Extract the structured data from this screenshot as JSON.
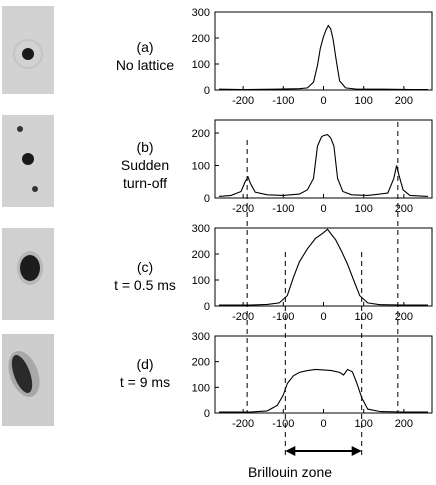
{
  "panels": [
    {
      "label": "(a)",
      "caption": [
        "No lattice"
      ]
    },
    {
      "label": "(b)",
      "caption": [
        "Sudden",
        "turn-off"
      ]
    },
    {
      "label": "(c)",
      "caption": [
        "t = 0.5 ms"
      ]
    },
    {
      "label": "(d)",
      "caption": [
        "t = 9 ms"
      ]
    }
  ],
  "brillouin_label": "Brillouin zone",
  "colors": {
    "trace": "#000000",
    "frame": "#000000",
    "tick_text": "#000000",
    "dashed": "#000000"
  },
  "chart_data": [
    {
      "type": "line",
      "x_ticks": [
        -200,
        -100,
        0,
        100,
        200
      ],
      "y_ticks": [
        0,
        100,
        200,
        300
      ],
      "xlim": [
        -270,
        270
      ],
      "ylim": [
        0,
        300
      ],
      "grid": false,
      "series": [
        {
          "x": [
            -260,
            -200,
            -120,
            -60,
            -40,
            -25,
            -15,
            -8,
            0,
            6,
            12,
            18,
            24,
            32,
            40,
            55,
            80,
            150,
            220,
            260
          ],
          "y": [
            3,
            2,
            3,
            5,
            8,
            30,
            95,
            160,
            205,
            230,
            248,
            235,
            195,
            110,
            35,
            8,
            4,
            3,
            2,
            2
          ]
        }
      ]
    },
    {
      "type": "line",
      "x_ticks": [
        -200,
        -100,
        0,
        100,
        200
      ],
      "y_ticks": [
        0,
        100,
        200
      ],
      "xlim": [
        -270,
        270
      ],
      "ylim": [
        0,
        240
      ],
      "grid": false,
      "series": [
        {
          "x": [
            -260,
            -230,
            -205,
            -195,
            -188,
            -182,
            -170,
            -140,
            -100,
            -60,
            -40,
            -25,
            -15,
            -5,
            0,
            10,
            18,
            26,
            35,
            48,
            70,
            110,
            160,
            175,
            182,
            188,
            198,
            215,
            260
          ],
          "y": [
            5,
            8,
            20,
            50,
            65,
            45,
            18,
            10,
            8,
            12,
            25,
            60,
            160,
            188,
            192,
            195,
            185,
            160,
            60,
            20,
            10,
            8,
            15,
            60,
            100,
            70,
            25,
            8,
            5
          ]
        }
      ]
    },
    {
      "type": "line",
      "x_ticks": [
        -200,
        -100,
        0,
        100,
        200
      ],
      "y_ticks": [
        0,
        100,
        200,
        300
      ],
      "xlim": [
        -270,
        270
      ],
      "ylim": [
        0,
        300
      ],
      "grid": false,
      "series": [
        {
          "x": [
            -260,
            -180,
            -140,
            -110,
            -90,
            -75,
            -60,
            -40,
            -20,
            0,
            10,
            20,
            30,
            45,
            60,
            75,
            90,
            110,
            140,
            200,
            260
          ],
          "y": [
            4,
            4,
            6,
            12,
            40,
            110,
            170,
            220,
            260,
            282,
            295,
            275,
            255,
            210,
            160,
            100,
            40,
            12,
            5,
            4,
            4
          ]
        }
      ]
    },
    {
      "type": "line",
      "x_ticks": [
        -200,
        -100,
        0,
        100,
        200
      ],
      "y_ticks": [
        0,
        100,
        200,
        300
      ],
      "xlim": [
        -270,
        270
      ],
      "ylim": [
        0,
        300
      ],
      "grid": false,
      "series": [
        {
          "x": [
            -260,
            -180,
            -140,
            -115,
            -100,
            -90,
            -75,
            -60,
            -40,
            -20,
            0,
            20,
            40,
            50,
            60,
            72,
            82,
            95,
            110,
            140,
            200,
            260
          ],
          "y": [
            4,
            4,
            8,
            30,
            70,
            115,
            145,
            158,
            165,
            170,
            168,
            165,
            158,
            148,
            170,
            160,
            120,
            60,
            15,
            6,
            4,
            4
          ]
        }
      ]
    }
  ],
  "dashed_lines_x": [
    -190,
    -95,
    95,
    185
  ]
}
